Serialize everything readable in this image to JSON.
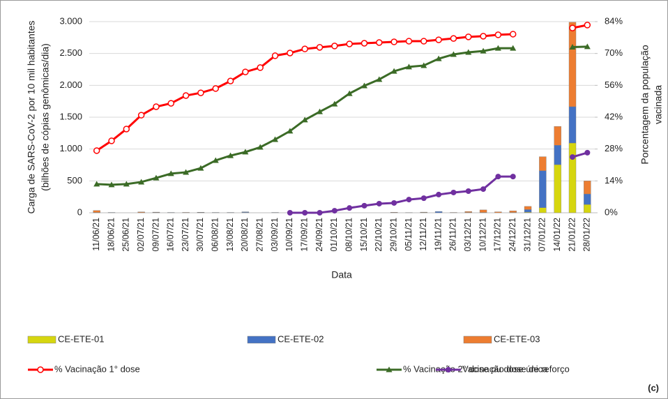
{
  "chart_data": {
    "type": "bar",
    "panel_label": "(c)",
    "y_label": [
      "Carga de SARS-CoV-2 por 10 mil habitantes",
      "(bilhões de cópias genômicas/dia)"
    ],
    "y2_label": [
      "Porcentagem da população",
      "vacinada"
    ],
    "x_label": "Data",
    "categories": [
      "11/06/21",
      "18/06/21",
      "25/06/21",
      "02/07/21",
      "09/07/21",
      "16/07/21",
      "23/07/21",
      "30/07/21",
      "06/08/21",
      "13/08/21",
      "20/08/21",
      "27/08/21",
      "03/09/21",
      "10/09/21",
      "17/09/21",
      "24/09/21",
      "01/10/21",
      "08/10/21",
      "15/10/21",
      "22/10/21",
      "29/10/21",
      "05/11/21",
      "12/11/21",
      "19/11/21",
      "26/11/21",
      "03/12/21",
      "10/12/21",
      "17/12/21",
      "24/12/21",
      "31/12/21",
      "07/01/22",
      "14/01/22",
      "21/01/22",
      "28/01/22"
    ],
    "ylim": [
      0,
      3000
    ],
    "yticks": [
      0,
      500,
      {
        "value": 1000,
        "label": "1.000"
      },
      {
        "value": 1500,
        "label": "1.500"
      },
      {
        "value": 2000,
        "label": "2.000"
      },
      {
        "value": 2500,
        "label": "2.500"
      },
      {
        "value": 3000,
        "label": "3.000"
      }
    ],
    "y2lim": [
      0,
      84
    ],
    "y2ticks": [
      {
        "value": 0,
        "label": "0%"
      },
      {
        "value": 14,
        "label": "14%"
      },
      {
        "value": 28,
        "label": "28%"
      },
      {
        "value": 42,
        "label": "42%"
      },
      {
        "value": 56,
        "label": "56%"
      },
      {
        "value": 70,
        "label": "70%"
      },
      {
        "value": 84,
        "label": "84%"
      }
    ],
    "grid": true,
    "series": [
      {
        "name": "CE-ETE-01",
        "type": "bar",
        "color": "#d6d60f",
        "values": [
          5,
          0,
          0,
          3,
          0,
          0,
          0,
          0,
          0,
          0,
          5,
          0,
          0,
          0,
          0,
          0,
          0,
          0,
          0,
          0,
          3,
          0,
          5,
          0,
          0,
          5,
          5,
          0,
          5,
          10,
          80,
          755,
          1095,
          130
        ]
      },
      {
        "name": "CE-ETE-02",
        "type": "bar",
        "color": "#4472c4",
        "values": [
          0,
          5,
          0,
          0,
          5,
          5,
          3,
          5,
          5,
          5,
          10,
          0,
          5,
          0,
          0,
          0,
          0,
          0,
          0,
          0,
          0,
          3,
          0,
          20,
          0,
          0,
          0,
          0,
          0,
          40,
          580,
          305,
          570,
          165
        ]
      },
      {
        "name": "CE-ETE-03",
        "type": "bar",
        "color": "#ed7d31",
        "values": [
          30,
          0,
          0,
          10,
          5,
          0,
          3,
          3,
          0,
          0,
          0,
          0,
          0,
          0,
          0,
          0,
          0,
          0,
          0,
          0,
          5,
          0,
          5,
          0,
          5,
          15,
          40,
          15,
          25,
          50,
          220,
          295,
          1325,
          205
        ]
      },
      {
        "name": "% Vacinação 1° dose",
        "type": "line",
        "axis": "y2",
        "marker": "open-circle",
        "color": "#ff0000",
        "values": [
          27.3,
          31.6,
          36.8,
          42.9,
          46.6,
          48.1,
          51.5,
          52.7,
          54.6,
          57.9,
          61.9,
          63.8,
          69.0,
          70.2,
          72.0,
          72.7,
          73.3,
          74.2,
          74.5,
          74.8,
          75.1,
          75.4,
          75.4,
          76.0,
          76.6,
          77.3,
          77.6,
          78.2,
          78.5,
          null,
          null,
          null,
          81.2,
          82.5
        ]
      },
      {
        "name": "% Vacinação 2° dose ou dose única",
        "type": "line",
        "axis": "y2",
        "marker": "triangle",
        "color": "#3b6b26",
        "values": [
          12.6,
          12.3,
          12.6,
          13.5,
          15.3,
          17.2,
          17.8,
          19.6,
          23.0,
          25.1,
          26.7,
          28.8,
          32.2,
          35.9,
          40.8,
          44.4,
          47.8,
          52.4,
          55.8,
          58.6,
          62.2,
          64.1,
          64.7,
          67.7,
          69.6,
          70.5,
          71.1,
          72.3,
          72.3,
          null,
          null,
          null,
          72.8,
          73.0
        ]
      },
      {
        "name": "Vacinação dose de reforço",
        "type": "line",
        "axis": "y2",
        "marker": "circle",
        "color": "#7030a0",
        "values": [
          null,
          null,
          null,
          null,
          null,
          null,
          null,
          null,
          null,
          null,
          null,
          null,
          null,
          0,
          0,
          0,
          0.9,
          2.1,
          3.1,
          4.0,
          4.3,
          5.8,
          6.4,
          8.0,
          8.9,
          9.5,
          10.4,
          15.9,
          15.9,
          null,
          null,
          null,
          24.5,
          26.4
        ]
      }
    ]
  }
}
